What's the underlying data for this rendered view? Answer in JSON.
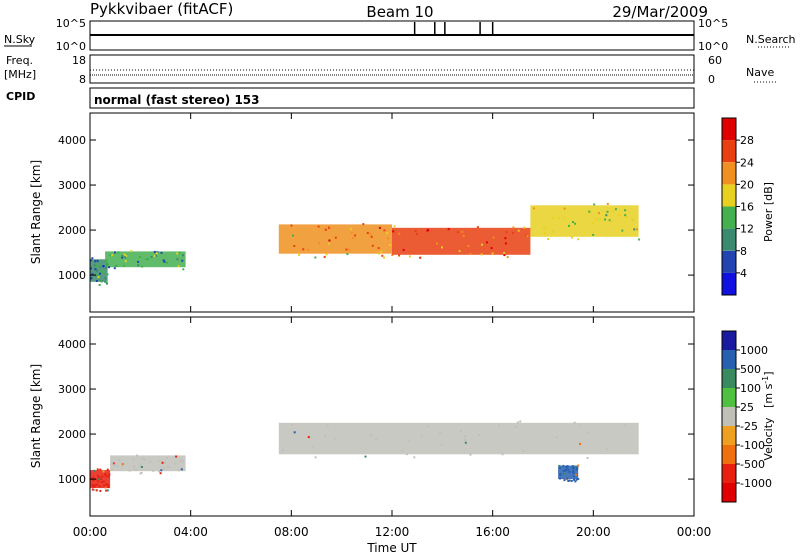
{
  "header": {
    "radar": "Pykkvibaer (fitACF)",
    "beam": "Beam 10",
    "date": "29/Mar/2009"
  },
  "nsky_panel": {
    "left_label": "N.Sky",
    "right_label": "N.Search",
    "left_ticks": [
      "10^5",
      "10^0"
    ],
    "right_ticks": [
      "10^5",
      "10^0"
    ]
  },
  "freq_panel": {
    "left_label_1": "Freq.",
    "left_label_2": "[MHz]",
    "right_label": "Nave",
    "left_ticks": [
      "18",
      "8"
    ],
    "right_ticks": [
      "60",
      "0"
    ]
  },
  "cpid": {
    "label": "CPID",
    "value": "normal (fast stereo) 153"
  },
  "x_axis": {
    "label": "Time UT",
    "ticks": [
      "00:00",
      "04:00",
      "08:00",
      "12:00",
      "16:00",
      "20:00",
      "00:00"
    ]
  },
  "chart_data": [
    {
      "type": "heatmap",
      "title": "Power",
      "ylabel": "Slant Range [km]",
      "xlabel": "Time UT",
      "y_ticks": [
        1000,
        2000,
        3000,
        4000
      ],
      "ylim": [
        180,
        4600
      ],
      "xlim": [
        0,
        24
      ],
      "colorbar": {
        "label": "Power [dB]",
        "ticks": [
          4,
          8,
          12,
          16,
          20,
          24,
          28
        ],
        "range": [
          0,
          32
        ],
        "colors": [
          "#1010e0",
          "#2244b0",
          "#3a8a70",
          "#44b050",
          "#e8d020",
          "#f09020",
          "#e84010",
          "#e00000"
        ]
      },
      "regions": [
        {
          "t": [
            0.0,
            0.7
          ],
          "center": 1100,
          "width": 500,
          "level": 10
        },
        {
          "t": [
            0.6,
            3.8
          ],
          "center": 1350,
          "width": 350,
          "level": 12
        },
        {
          "t": [
            7.5,
            12.0
          ],
          "center": 1800,
          "width": 650,
          "level": 22
        },
        {
          "t": [
            12.0,
            17.5
          ],
          "center": 1750,
          "width": 600,
          "level": 24
        },
        {
          "t": [
            17.5,
            21.8
          ],
          "center": 2200,
          "width": 700,
          "level": 18
        }
      ]
    },
    {
      "type": "heatmap",
      "title": "Velocity",
      "ylabel": "Slant Range [km]",
      "xlabel": "Time UT",
      "y_ticks": [
        1000,
        2000,
        3000,
        4000
      ],
      "ylim": [
        180,
        4600
      ],
      "xlim": [
        0,
        24
      ],
      "colorbar": {
        "label": "Velocity",
        "unit": "[m s",
        "unit_exp": "-1",
        "unit_close": "]",
        "ticks": [
          "1000",
          "500",
          "100",
          "25",
          "-25",
          "-100",
          "-500",
          "-1000"
        ],
        "colors": [
          "#1a1aa0",
          "#2860b0",
          "#3a8a60",
          "#50c040",
          "#c0c0b8",
          "#f0a020",
          "#f07010",
          "#e82010",
          "#e00000"
        ]
      },
      "regions": [
        {
          "t": [
            0.0,
            0.8
          ],
          "center": 1000,
          "width": 400,
          "level": -400
        },
        {
          "t": [
            0.8,
            3.8
          ],
          "center": 1350,
          "width": 350,
          "level": 0
        },
        {
          "t": [
            7.5,
            21.8
          ],
          "center": 1900,
          "width": 700,
          "level": 0
        },
        {
          "t": [
            18.6,
            19.4
          ],
          "center": 1150,
          "width": 300,
          "level": 600
        }
      ]
    }
  ]
}
